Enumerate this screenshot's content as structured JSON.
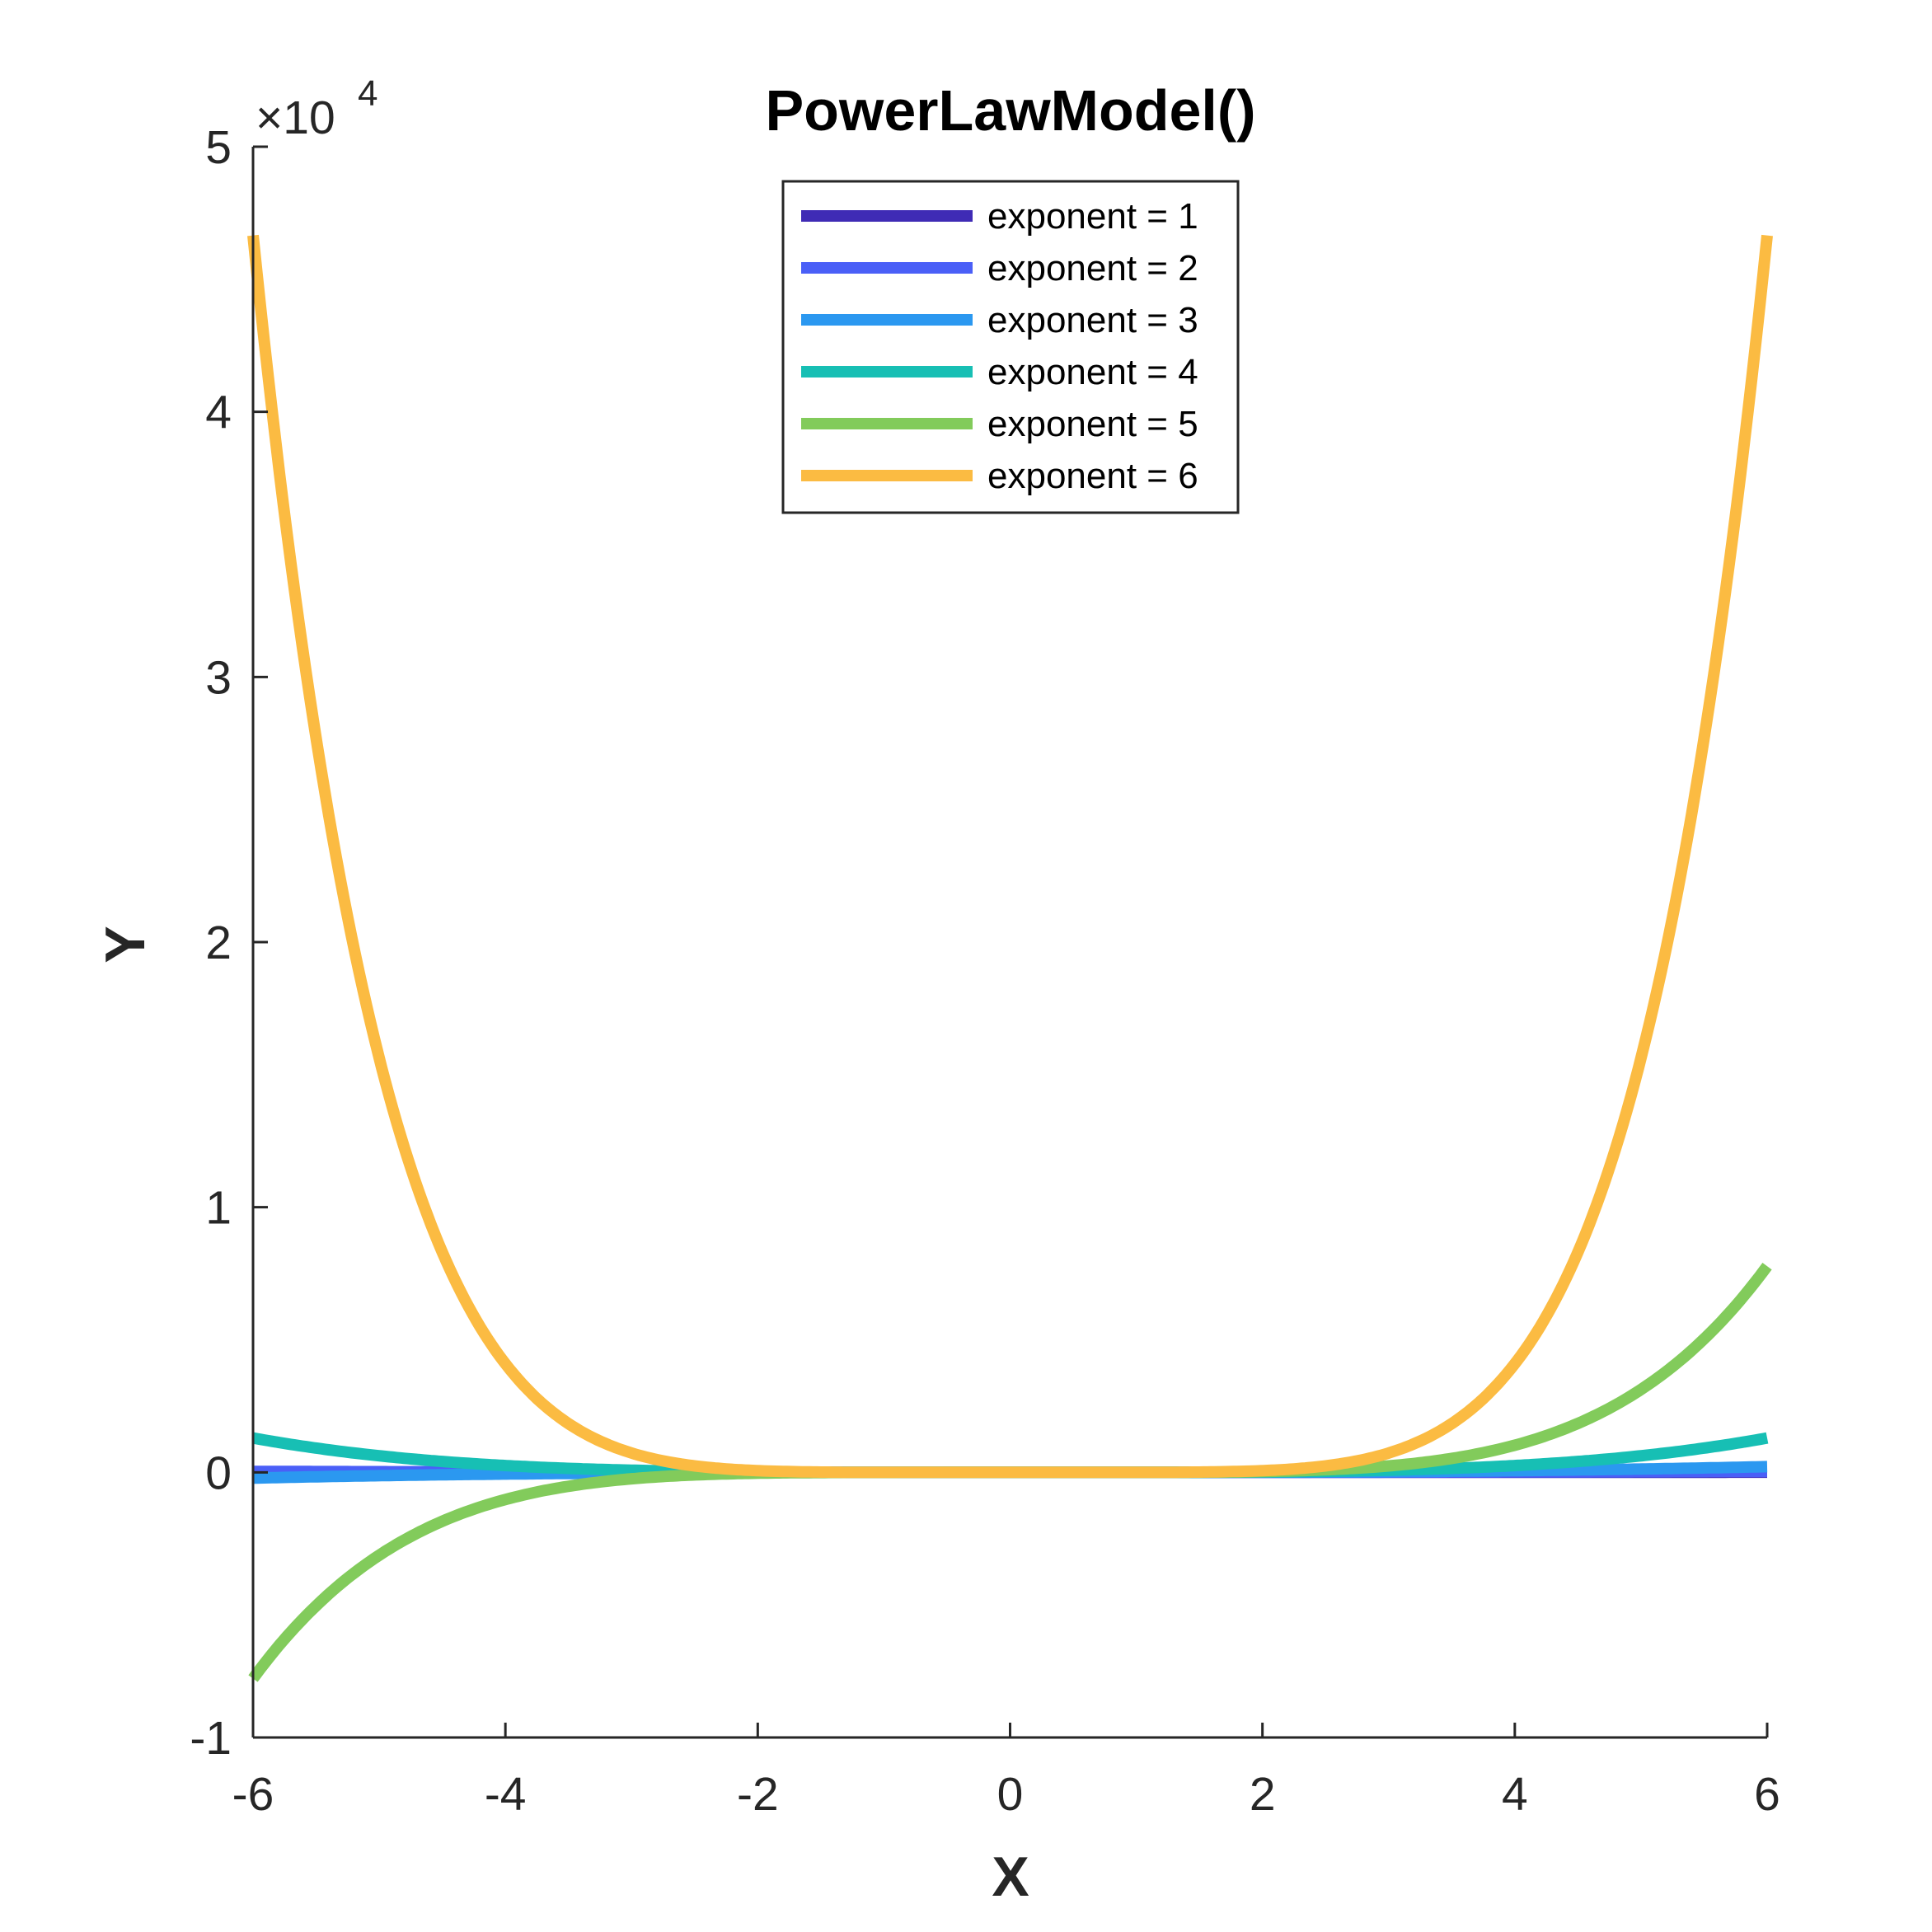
{
  "chart_data": {
    "type": "line",
    "title": "PowerLawModel()",
    "xlabel": "X",
    "ylabel": "Y",
    "xlim": [
      -6,
      6
    ],
    "ylim": [
      -10000,
      50000
    ],
    "x_ticks": [
      -6,
      -4,
      -2,
      0,
      2,
      4,
      6
    ],
    "x_tick_labels": [
      "-6",
      "-4",
      "-2",
      "0",
      "2",
      "4",
      "6"
    ],
    "y_ticks": [
      -10000,
      0,
      10000,
      20000,
      30000,
      40000,
      50000
    ],
    "y_tick_labels": [
      "-1",
      "0",
      "1",
      "2",
      "3",
      "4",
      "5"
    ],
    "y_exponent": {
      "base": "×10",
      "power": "4"
    },
    "grid": false,
    "legend_position": "top-center",
    "function": "y = x^exponent",
    "x": [
      -6,
      -5,
      -4,
      -3,
      -2,
      -1,
      0,
      1,
      2,
      3,
      4,
      5,
      6
    ],
    "series": [
      {
        "name": "exponent = 1",
        "color": "#3f2bb5",
        "values": [
          -6,
          -5,
          -4,
          -3,
          -2,
          -1,
          0,
          1,
          2,
          3,
          4,
          5,
          6
        ]
      },
      {
        "name": "exponent = 2",
        "color": "#4a5ff7",
        "values": [
          36,
          25,
          16,
          9,
          4,
          1,
          0,
          1,
          4,
          9,
          16,
          25,
          36
        ]
      },
      {
        "name": "exponent = 3",
        "color": "#2b98f0",
        "values": [
          -216,
          -125,
          -64,
          -27,
          -8,
          -1,
          0,
          1,
          8,
          27,
          64,
          125,
          216
        ]
      },
      {
        "name": "exponent = 4",
        "color": "#17bfb4",
        "values": [
          1296,
          625,
          256,
          81,
          16,
          1,
          0,
          1,
          16,
          81,
          256,
          625,
          1296
        ]
      },
      {
        "name": "exponent = 5",
        "color": "#82cb5b",
        "values": [
          -7776,
          -3125,
          -1024,
          -243,
          -32,
          -1,
          0,
          1,
          32,
          243,
          1024,
          3125,
          7776
        ]
      },
      {
        "name": "exponent = 6",
        "color": "#fbbb42",
        "values": [
          46656,
          15625,
          4096,
          729,
          64,
          1,
          0,
          1,
          64,
          729,
          4096,
          15625,
          46656
        ]
      }
    ]
  }
}
